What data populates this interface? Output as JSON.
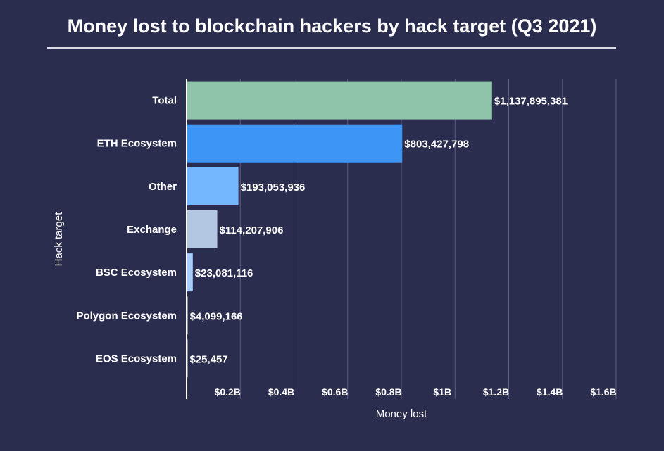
{
  "chart_data": {
    "type": "bar",
    "orientation": "horizontal",
    "title": "Money lost to blockchain hackers by hack target (Q3 2021)",
    "xlabel": "Money lost",
    "ylabel": "Hack target",
    "xlim": [
      0,
      1600000000
    ],
    "x_ticks": [
      {
        "value": 200000000,
        "label": "$0.2B"
      },
      {
        "value": 400000000,
        "label": "$0.4B"
      },
      {
        "value": 600000000,
        "label": "$0.6B"
      },
      {
        "value": 800000000,
        "label": "$0.8B"
      },
      {
        "value": 1000000000,
        "label": "$1B"
      },
      {
        "value": 1200000000,
        "label": "$1.2B"
      },
      {
        "value": 1400000000,
        "label": "$1.4B"
      },
      {
        "value": 1600000000,
        "label": "$1.6B"
      }
    ],
    "grid": true,
    "bars": [
      {
        "category": "Total",
        "value": 1137895381,
        "label": "$1,137,895,381",
        "color": "#8fc4ab"
      },
      {
        "category": "ETH Ecosystem",
        "value": 803427798,
        "label": "$803,427,798",
        "color": "#3d96f5"
      },
      {
        "category": "Other",
        "value": 193053936,
        "label": "$193,053,936",
        "color": "#75b7ff"
      },
      {
        "category": "Exchange",
        "value": 114207906,
        "label": "$114,207,906",
        "color": "#b3c6e2"
      },
      {
        "category": "BSC Ecosystem",
        "value": 23081116,
        "label": "$23,081,116",
        "color": "#a8ceff"
      },
      {
        "category": "Polygon Ecosystem",
        "value": 4099166,
        "label": "$4,099,166",
        "color": "#c6d8f0"
      },
      {
        "category": "EOS Ecosystem",
        "value": 25457,
        "label": "$25,457",
        "color": "#d9e4f2"
      }
    ]
  }
}
